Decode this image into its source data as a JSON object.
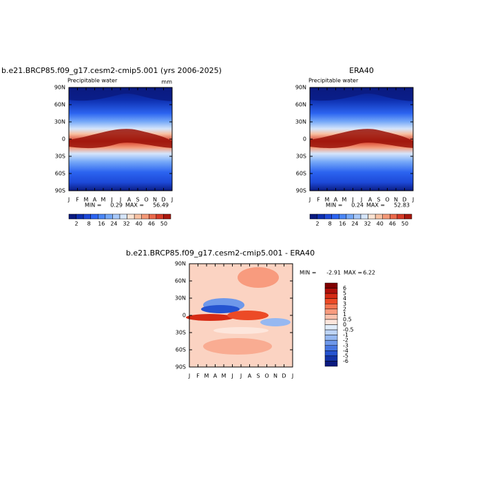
{
  "panels": [
    {
      "title": "b.e21.BRCP85.f09_g17.cesm2-cmip5.001 (yrs 2006-2025)",
      "variable": "Precipitable water",
      "units": "mm",
      "months": [
        "J",
        "F",
        "M",
        "A",
        "M",
        "J",
        "J",
        "A",
        "S",
        "O",
        "N",
        "D",
        "J"
      ],
      "lat_labels": [
        "90N",
        "60N",
        "30N",
        "0",
        "30S",
        "60S",
        "90S"
      ],
      "min_label": "MIN =",
      "min": 0.29,
      "max_label": "MAX =",
      "max": 56.49,
      "colorbar_labels": [
        2,
        8,
        16,
        24,
        32,
        40,
        46,
        50
      ]
    },
    {
      "title": "ERA40",
      "variable": "Precipitable water",
      "months": [
        "J",
        "F",
        "M",
        "A",
        "M",
        "J",
        "J",
        "A",
        "S",
        "O",
        "N",
        "D",
        "J"
      ],
      "lat_labels": [
        "90N",
        "60N",
        "30N",
        "0",
        "30S",
        "60S",
        "90S"
      ],
      "min_label": "MIN =",
      "min": 0.24,
      "max_label": "MAX =",
      "max": 52.83,
      "colorbar_labels": [
        2,
        8,
        16,
        24,
        32,
        40,
        46,
        50
      ]
    },
    {
      "title": "b.e21.BRCP85.f09_g17.cesm2-cmip5.001 - ERA40",
      "months": [
        "J",
        "F",
        "M",
        "A",
        "M",
        "J",
        "J",
        "A",
        "S",
        "O",
        "N",
        "D",
        "J"
      ],
      "lat_labels": [
        "90N",
        "60N",
        "30N",
        "0",
        "30S",
        "60S",
        "90S"
      ],
      "min_label": "MIN =",
      "min": -2.91,
      "max_label": "MAX =",
      "max": 6.22,
      "colorbar_labels": [
        6,
        5,
        4,
        3,
        2,
        1,
        0.5,
        0,
        -0.5,
        -1,
        -2,
        -3,
        -4,
        -5,
        -6
      ]
    }
  ]
}
